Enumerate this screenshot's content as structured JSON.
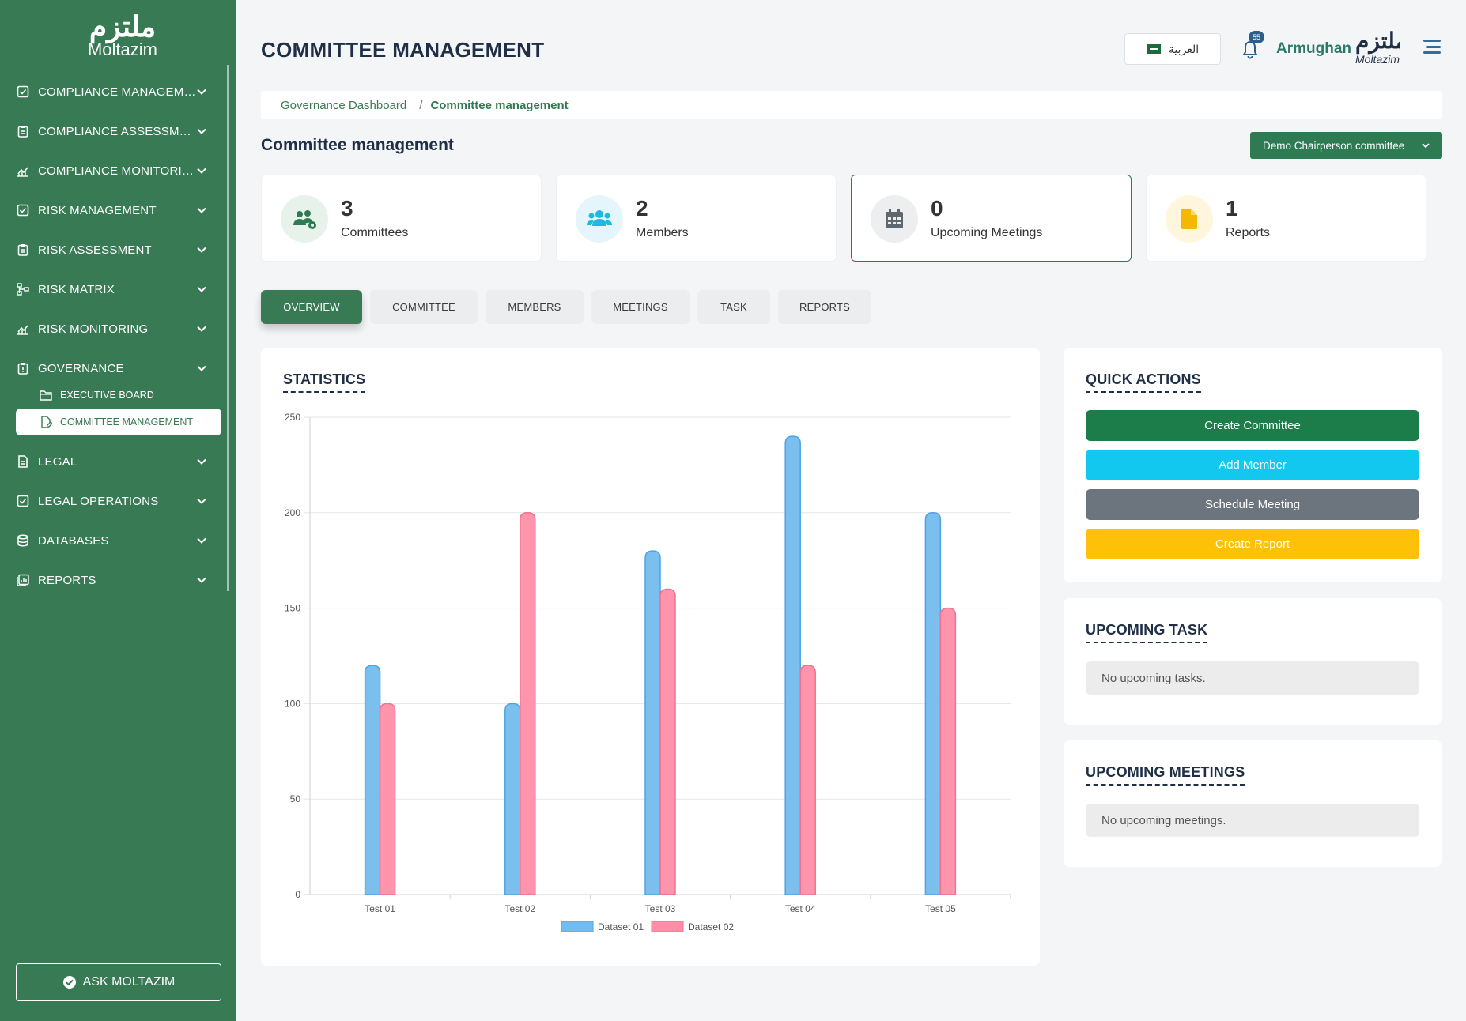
{
  "brand": {
    "logo_arabic": "ملتزم",
    "logo_english": "Moltazim"
  },
  "sidebar": {
    "items": [
      {
        "label": "COMPLIANCE MANAGEME...",
        "icon": "check-square-icon"
      },
      {
        "label": "COMPLIANCE ASSESSMENT",
        "icon": "clipboard-icon"
      },
      {
        "label": "COMPLIANCE MONITORING",
        "icon": "chart-line-icon"
      },
      {
        "label": "RISK MANAGEMENT",
        "icon": "check-square-icon"
      },
      {
        "label": "RISK ASSESSMENT",
        "icon": "clipboard-icon"
      },
      {
        "label": "RISK MATRIX",
        "icon": "sitemap-icon"
      },
      {
        "label": "RISK MONITORING",
        "icon": "chart-line-icon"
      },
      {
        "label": "GOVERNANCE",
        "icon": "alert-clipboard-icon"
      }
    ],
    "governance_sub": [
      {
        "label": "EXECUTIVE BOARD",
        "icon": "folder-icon"
      },
      {
        "label": "COMMITTEE MANAGEMENT",
        "icon": "file-edit-icon"
      }
    ],
    "items_after": [
      {
        "label": "LEGAL",
        "icon": "document-icon"
      },
      {
        "label": "LEGAL OPERATIONS",
        "icon": "check-square-icon"
      },
      {
        "label": "DATABASES",
        "icon": "database-icon"
      },
      {
        "label": "REPORTS",
        "icon": "report-icon"
      }
    ],
    "ask_label": "ASK MOLTAZIM"
  },
  "header": {
    "title": "COMMITTEE MANAGEMENT",
    "language": "العربية",
    "notification_count": "55",
    "username": "Armughan",
    "logo_arabic": "ملتزم",
    "logo_english": "Moltazim"
  },
  "breadcrumb": {
    "link": "Governance Dashboard",
    "separator": "/",
    "current": "Committee management"
  },
  "section": {
    "title": "Committee management",
    "selected_committee": "Demo Chairperson committee"
  },
  "stats": [
    {
      "value": "3",
      "label": "Committees",
      "icon": "users-gear-icon",
      "color": "#2e7a52",
      "bg": "#e6f2ea"
    },
    {
      "value": "2",
      "label": "Members",
      "icon": "users-icon",
      "color": "#1fb8de",
      "bg": "#e4f6fb"
    },
    {
      "value": "0",
      "label": "Upcoming Meetings",
      "icon": "calendar-icon",
      "color": "#5f6770",
      "bg": "#eceef0"
    },
    {
      "value": "1",
      "label": "Reports",
      "icon": "file-icon",
      "color": "#f5b800",
      "bg": "#fff6dd"
    }
  ],
  "tabs": [
    "OVERVIEW",
    "COMMITTEE",
    "MEMBERS",
    "MEETINGS",
    "TASK",
    "REPORTS"
  ],
  "statistics": {
    "title": "STATISTICS"
  },
  "quick_actions": {
    "title": "QUICK ACTIONS",
    "buttons": [
      {
        "label": "Create Committee",
        "color": "#1c7c4a"
      },
      {
        "label": "Add Member",
        "color": "#12c8ef"
      },
      {
        "label": "Schedule Meeting",
        "color": "#6c757d"
      },
      {
        "label": "Create Report",
        "color": "#ffc107"
      }
    ]
  },
  "upcoming_task": {
    "title": "UPCOMING TASK",
    "empty": "No upcoming tasks."
  },
  "upcoming_meetings": {
    "title": "UPCOMING MEETINGS",
    "empty": "No upcoming meetings."
  },
  "chart_data": {
    "type": "bar",
    "categories": [
      "Test 01",
      "Test 02",
      "Test 03",
      "Test 04",
      "Test 05"
    ],
    "series": [
      {
        "name": "Dataset 01",
        "values": [
          120,
          100,
          180,
          240,
          200
        ],
        "color": "#74bcee"
      },
      {
        "name": "Dataset 02",
        "values": [
          100,
          200,
          160,
          120,
          150
        ],
        "color": "#ff8fa8"
      }
    ],
    "yticks": [
      "0",
      "50",
      "100",
      "150",
      "200",
      "250"
    ],
    "ylim": [
      0,
      250
    ],
    "grid": true,
    "legend": "bottom"
  }
}
